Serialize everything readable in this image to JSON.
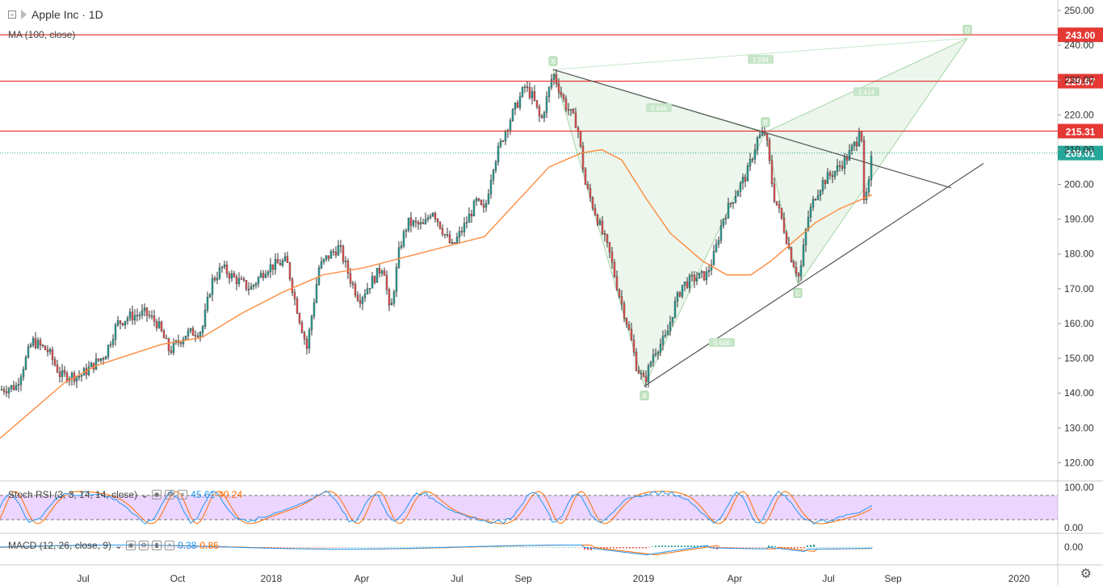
{
  "header": {
    "title": "Apple Inc · 1D",
    "indicator": "MA (100, close)"
  },
  "oscillators": {
    "stoch": {
      "label": "Stoch RSI (3, 3, 14, 14, close)",
      "k": "45.61",
      "d": "40.24"
    },
    "macd": {
      "label": "MACD (12, 26, close, 9)",
      "macd": "0.38",
      "signal": "0.86"
    }
  },
  "chart_data": {
    "type": "candlestick",
    "symbol": "Apple Inc",
    "interval": "1D",
    "price_axis": {
      "min": 115,
      "max": 253,
      "ticks": [
        120,
        130,
        140,
        150,
        160,
        170,
        180,
        190,
        200,
        210,
        220,
        230,
        240,
        250
      ]
    },
    "time_axis": {
      "labels": [
        "Jul",
        "Oct",
        "2018",
        "Apr",
        "Jul",
        "Sep",
        "2019",
        "Apr",
        "Jul",
        "Sep",
        "2020"
      ]
    },
    "horizontal_levels": [
      {
        "price": 243.0,
        "label": "243.00",
        "color": "#e53935"
      },
      {
        "price": 229.67,
        "label": "229.67",
        "color": "#e53935"
      },
      {
        "price": 215.31,
        "label": "215.31",
        "color": "#e53935"
      }
    ],
    "last_price": {
      "price": 209.01,
      "label": "209.01",
      "color": "#26a69a"
    },
    "price_path": [
      [
        0,
        141
      ],
      [
        20,
        142
      ],
      [
        40,
        155
      ],
      [
        60,
        152
      ],
      [
        75,
        145
      ],
      [
        100,
        145
      ],
      [
        130,
        151
      ],
      [
        145,
        160
      ],
      [
        160,
        162
      ],
      [
        180,
        163
      ],
      [
        195,
        160
      ],
      [
        210,
        152
      ],
      [
        230,
        157
      ],
      [
        250,
        158
      ],
      [
        262,
        172
      ],
      [
        275,
        176
      ],
      [
        290,
        173
      ],
      [
        310,
        170
      ],
      [
        330,
        176
      ],
      [
        355,
        178
      ],
      [
        365,
        167
      ],
      [
        380,
        153
      ],
      [
        395,
        176
      ],
      [
        405,
        179
      ],
      [
        420,
        182
      ],
      [
        435,
        172
      ],
      [
        445,
        167
      ],
      [
        460,
        172
      ],
      [
        475,
        177
      ],
      [
        483,
        162
      ],
      [
        495,
        182
      ],
      [
        505,
        189
      ],
      [
        525,
        188
      ],
      [
        535,
        193
      ],
      [
        550,
        186
      ],
      [
        560,
        182
      ],
      [
        575,
        188
      ],
      [
        590,
        195
      ],
      [
        600,
        192
      ],
      [
        610,
        205
      ],
      [
        625,
        215
      ],
      [
        640,
        223
      ],
      [
        650,
        228
      ],
      [
        660,
        225
      ],
      [
        670,
        218
      ],
      [
        685,
        232
      ],
      [
        700,
        223
      ],
      [
        715,
        217
      ],
      [
        725,
        200
      ],
      [
        740,
        190
      ],
      [
        755,
        180
      ],
      [
        765,
        170
      ],
      [
        780,
        157
      ],
      [
        788,
        148
      ],
      [
        798,
        143
      ],
      [
        810,
        152
      ],
      [
        825,
        156
      ],
      [
        835,
        165
      ],
      [
        845,
        171
      ],
      [
        860,
        173
      ],
      [
        875,
        174
      ],
      [
        885,
        180
      ],
      [
        895,
        190
      ],
      [
        910,
        197
      ],
      [
        925,
        203
      ],
      [
        938,
        213
      ],
      [
        948,
        215
      ],
      [
        958,
        197
      ],
      [
        968,
        190
      ],
      [
        980,
        179
      ],
      [
        990,
        173
      ],
      [
        1000,
        190
      ],
      [
        1010,
        197
      ],
      [
        1020,
        201
      ],
      [
        1035,
        204
      ],
      [
        1050,
        208
      ],
      [
        1062,
        213
      ],
      [
        1066,
        220
      ],
      [
        1070,
        194
      ],
      [
        1076,
        200
      ],
      [
        1080,
        209
      ]
    ],
    "ma_path": [
      [
        0,
        127
      ],
      [
        40,
        135
      ],
      [
        80,
        143
      ],
      [
        120,
        148
      ],
      [
        160,
        151
      ],
      [
        200,
        154
      ],
      [
        250,
        156
      ],
      [
        300,
        163
      ],
      [
        350,
        169
      ],
      [
        400,
        174
      ],
      [
        450,
        176
      ],
      [
        500,
        179
      ],
      [
        550,
        182
      ],
      [
        600,
        185
      ],
      [
        640,
        195
      ],
      [
        680,
        205
      ],
      [
        720,
        209
      ],
      [
        745,
        210
      ],
      [
        770,
        207
      ],
      [
        800,
        196
      ],
      [
        830,
        186
      ],
      [
        870,
        178
      ],
      [
        900,
        174
      ],
      [
        930,
        174
      ],
      [
        955,
        178
      ],
      [
        980,
        183
      ],
      [
        1010,
        189
      ],
      [
        1040,
        193
      ],
      [
        1080,
        197
      ]
    ],
    "trendlines": [
      {
        "from": [
          685,
          233
        ],
        "to": [
          1178,
          199
        ],
        "color": "#555"
      },
      {
        "from": [
          798,
          142
        ],
        "to": [
          1218,
          206
        ],
        "color": "#555"
      }
    ],
    "pattern": {
      "points": {
        "X": [
          685,
          233
        ],
        "A": [
          798,
          142
        ],
        "B": [
          948,
          215
        ],
        "C": [
          988,
          171
        ],
        "D": [
          1198,
          242
        ]
      },
      "labels": [
        "X",
        "A",
        "B",
        "C",
        "D"
      ],
      "ratios": [
        "0.646",
        "0.646",
        "1.594",
        "1.414"
      ]
    },
    "stoch_rsi": {
      "range": [
        0,
        100
      ],
      "bands": [
        20,
        80
      ],
      "ticks": [
        "100.00",
        "0.00"
      ],
      "k": 45.61,
      "d": 40.24
    },
    "macd": {
      "ticks": [
        "0.00"
      ],
      "macd": 0.38,
      "signal": 0.86
    }
  }
}
